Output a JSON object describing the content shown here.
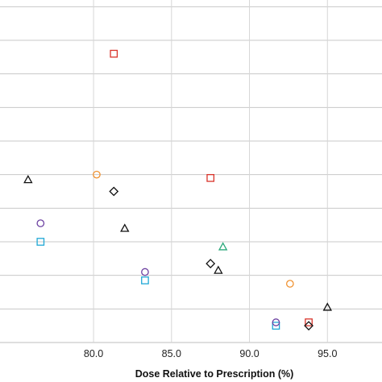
{
  "chart_data": {
    "type": "scatter",
    "title": "",
    "xlabel": "Dose Relative to Prescription (%)",
    "ylabel": "",
    "xlim": [
      74.0,
      98.5
    ],
    "ylim": [
      0.0,
      10.2
    ],
    "grid": "horizontal",
    "x_ticks": [
      80.0,
      85.0,
      90.0,
      95.0
    ],
    "x_tick_labels": [
      "80.0",
      "85.0",
      "90.0",
      "95.0"
    ],
    "y_gridlines": [
      1,
      2,
      3,
      4,
      5,
      6,
      7,
      8,
      9,
      10
    ],
    "series": [
      {
        "marker": "square",
        "color": "#d9342b",
        "points": [
          [
            81.3,
            8.6
          ],
          [
            87.5,
            4.9
          ],
          [
            93.8,
            0.6
          ]
        ]
      },
      {
        "marker": "square",
        "color": "#1fa8d6",
        "points": [
          [
            76.6,
            3.0
          ],
          [
            83.3,
            1.85
          ],
          [
            91.7,
            0.5
          ]
        ]
      },
      {
        "marker": "circle",
        "color": "#f0912f",
        "points": [
          [
            80.2,
            5.0
          ],
          [
            92.6,
            1.75
          ]
        ]
      },
      {
        "marker": "circle",
        "color": "#6b3fa0",
        "points": [
          [
            76.6,
            3.55
          ],
          [
            83.3,
            2.1
          ],
          [
            91.7,
            0.6
          ]
        ]
      },
      {
        "marker": "diamond",
        "color": "#111111",
        "points": [
          [
            81.3,
            4.5
          ],
          [
            87.5,
            2.35
          ],
          [
            93.8,
            0.5
          ]
        ]
      },
      {
        "marker": "triangle",
        "color": "#111111",
        "points": [
          [
            75.8,
            4.85
          ],
          [
            82.0,
            3.4
          ],
          [
            88.0,
            2.15
          ],
          [
            95.0,
            1.05
          ]
        ]
      },
      {
        "marker": "triangle",
        "color": "#2aa87a",
        "points": [
          [
            88.3,
            2.85
          ]
        ]
      }
    ]
  }
}
